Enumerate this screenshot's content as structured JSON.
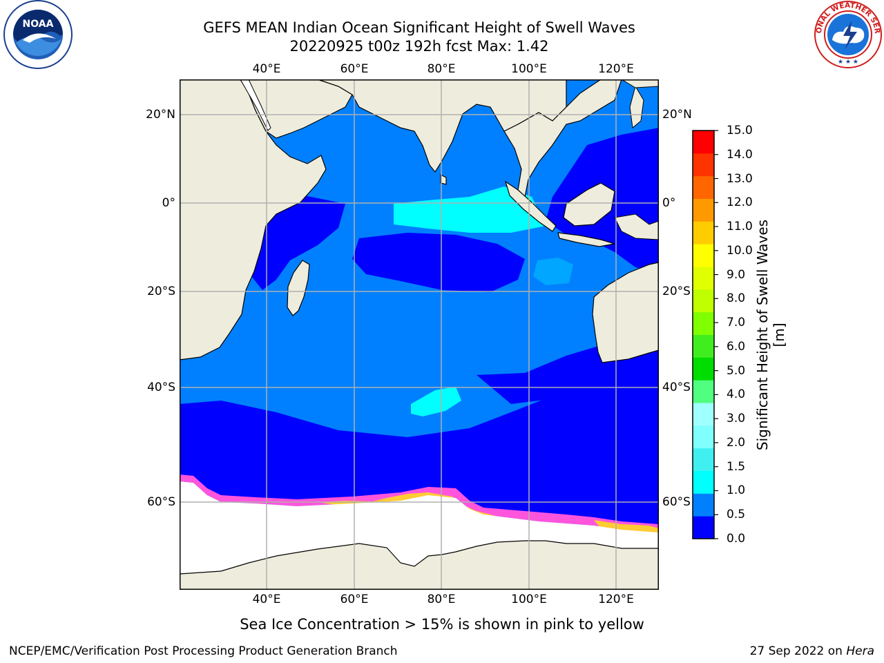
{
  "header": {
    "title_line1": "GEFS MEAN Indian Ocean Significant Height of Swell Waves",
    "title_line2": "20220925 t00z 192h fcst   Max: 1.42"
  },
  "logos": {
    "left": {
      "name": "noaa-logo",
      "text": "NOAA"
    },
    "right": {
      "name": "nws-logo",
      "text": "NATIONAL WEATHER SERVICE"
    }
  },
  "map": {
    "lon_labels": [
      "40°E",
      "60°E",
      "80°E",
      "100°E",
      "120°E"
    ],
    "lat_labels_left": [
      "20°N",
      "0°",
      "20°S",
      "40°S",
      "60°S"
    ],
    "lat_labels_right": [
      "20°N",
      "0°",
      "20°S",
      "40°S",
      "60°S"
    ],
    "colors": {
      "land": "#eeecdc",
      "ice": "#ffffff",
      "gridline": "#b0b0b0",
      "coast": "#000000",
      "ice_edge_pink": "#ff55dd",
      "ice_edge_yellow": "#ffcc33"
    }
  },
  "colorbar": {
    "label": "Significant Height of Swell Waves [m]",
    "ticks": [
      "15.0",
      "14.0",
      "13.0",
      "12.0",
      "11.0",
      "10.0",
      "9.0",
      "8.0",
      "7.0",
      "6.0",
      "5.0",
      "4.0",
      "3.0",
      "2.0",
      "1.5",
      "1.0",
      "0.5",
      "0.0"
    ],
    "colors_bottom_to_top": [
      "#0000ff",
      "#0080ff",
      "#00ffff",
      "#40f0f0",
      "#80ffff",
      "#a0ffff",
      "#50ff80",
      "#00dd00",
      "#40ee20",
      "#80ff00",
      "#c0ff00",
      "#e0ff00",
      "#ffff00",
      "#ffcc00",
      "#ff9900",
      "#ff6600",
      "#ff3300",
      "#ff0000"
    ]
  },
  "footer": {
    "note": "Sea Ice Concentration > 15% is shown in pink to yellow",
    "credit": "NCEP/EMC/Verification Post Processing Product Generation Branch",
    "date": "27 Sep 2022 on",
    "host": "Hera"
  }
}
